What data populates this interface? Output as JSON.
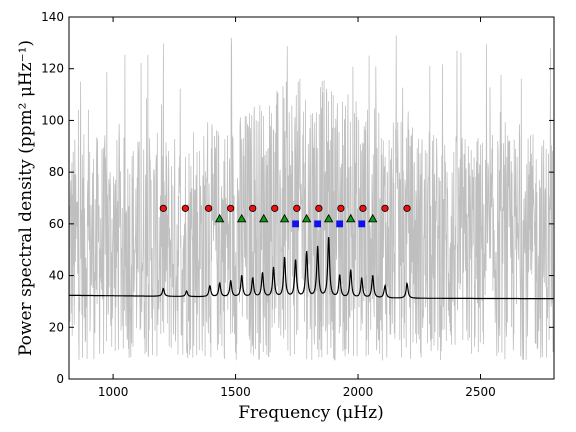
{
  "chart_data": {
    "type": "line",
    "xlabel": "Frequency (μHz)",
    "ylabel": "Power spectral density (ppm² μHz⁻¹)",
    "xlim": [
      820,
      2800
    ],
    "ylim": [
      0,
      140
    ],
    "xticks": [
      1000,
      1500,
      2000,
      2500
    ],
    "yticks": [
      0,
      20,
      40,
      60,
      80,
      100,
      120,
      140
    ],
    "grid": false,
    "series": [
      {
        "role": "observed spectrum",
        "style": "gray noisy line",
        "color": "#bfbfbf",
        "envelope": {
          "lower_typical": 7,
          "upper_typical": 95,
          "peak_upper": 140
        }
      },
      {
        "role": "fitted model",
        "style": "black line",
        "color": "#000000",
        "background_low_freq": 32.5,
        "background_high_freq": 31,
        "peaks": [
          {
            "x": 1205,
            "y": 35
          },
          {
            "x": 1300,
            "y": 34
          },
          {
            "x": 1395,
            "y": 36
          },
          {
            "x": 1435,
            "y": 37
          },
          {
            "x": 1480,
            "y": 38
          },
          {
            "x": 1525,
            "y": 40
          },
          {
            "x": 1570,
            "y": 39
          },
          {
            "x": 1610,
            "y": 41
          },
          {
            "x": 1655,
            "y": 43
          },
          {
            "x": 1700,
            "y": 47
          },
          {
            "x": 1745,
            "y": 46
          },
          {
            "x": 1790,
            "y": 49
          },
          {
            "x": 1835,
            "y": 51
          },
          {
            "x": 1880,
            "y": 55
          },
          {
            "x": 1925,
            "y": 40
          },
          {
            "x": 1970,
            "y": 42
          },
          {
            "x": 2015,
            "y": 39
          },
          {
            "x": 2060,
            "y": 40
          },
          {
            "x": 2110,
            "y": 36
          },
          {
            "x": 2200,
            "y": 37
          }
        ]
      },
      {
        "role": "mode markers",
        "marker": "circle",
        "color": "#ee1111",
        "edge": "#000000",
        "x": [
          1205,
          1295,
          1390,
          1480,
          1570,
          1660,
          1750,
          1840,
          1930,
          2020,
          2110,
          2200
        ],
        "y": [
          66,
          66,
          66,
          66,
          66,
          66,
          66,
          66,
          66,
          66,
          66,
          66
        ]
      },
      {
        "role": "mode markers",
        "marker": "triangle",
        "color": "#119911",
        "edge": "#000000",
        "x": [
          1435,
          1525,
          1615,
          1700,
          1790,
          1880,
          1970,
          2060
        ],
        "y": [
          62,
          62,
          62,
          62,
          62,
          62,
          62,
          62
        ]
      },
      {
        "role": "mode markers",
        "marker": "square",
        "color": "#1111ee",
        "edge": "#1111ee",
        "x": [
          1745,
          1835,
          1925,
          2015
        ],
        "y": [
          60,
          60,
          60,
          60
        ]
      }
    ]
  }
}
